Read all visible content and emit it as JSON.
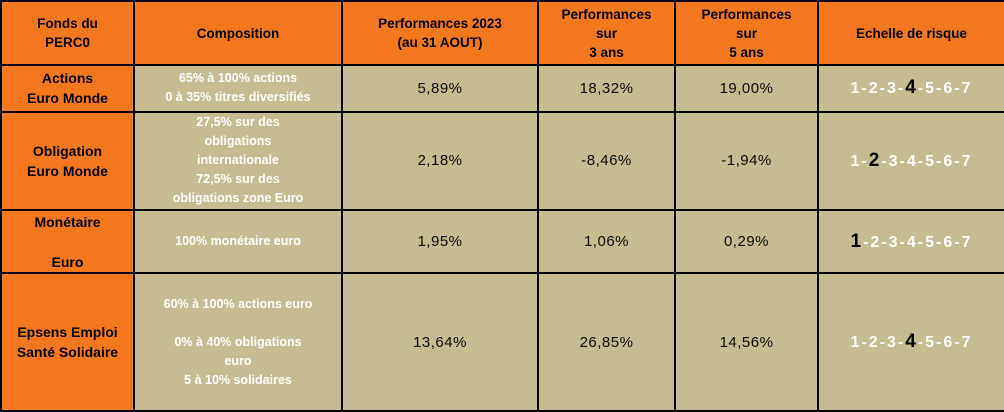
{
  "colors": {
    "header_bg": "#F4791E",
    "cell_bg": "#C5BC92",
    "border": "#000000",
    "composition_text": "#FFFFFF",
    "risk_text": "#FFFFFF",
    "risk_highlight": "#000000"
  },
  "chart_data": {
    "type": "table",
    "title": "Fonds du PERC0 — performances et échelle de risque",
    "headers": [
      [
        "Fonds du",
        "PERC0"
      ],
      [
        "Composition"
      ],
      [
        "Performances 2023",
        "(au 31 AOUT)"
      ],
      [
        "Performances",
        "sur",
        "3 ans"
      ],
      [
        "Performances",
        "sur",
        "5 ans"
      ],
      [
        "Echelle de risque"
      ]
    ],
    "rows": [
      {
        "fund": [
          "Actions",
          "Euro Monde"
        ],
        "composition": [
          "65% à 100% actions",
          "0 à 35% titres diversifiés"
        ],
        "perf_2023": "5,89%",
        "perf_3ans": "18,32%",
        "perf_5ans": "19,00%",
        "risk_scale": [
          1,
          2,
          3,
          4,
          5,
          6,
          7
        ],
        "risk_level": 4
      },
      {
        "fund": [
          "Obligation",
          "Euro Monde"
        ],
        "composition": [
          "27,5% sur des",
          "obligations",
          "internationale",
          "72,5% sur des",
          "obligations zone Euro"
        ],
        "perf_2023": "2,18%",
        "perf_3ans": "-8,46%",
        "perf_5ans": "-1,94%",
        "risk_scale": [
          1,
          2,
          3,
          4,
          5,
          6,
          7
        ],
        "risk_level": 2
      },
      {
        "fund": [
          "Monétaire",
          "",
          "Euro"
        ],
        "composition": [
          "100% monétaire euro"
        ],
        "perf_2023": "1,95%",
        "perf_3ans": "1,06%",
        "perf_5ans": "0,29%",
        "risk_scale": [
          1,
          2,
          3,
          4,
          5,
          6,
          7
        ],
        "risk_level": 1
      },
      {
        "fund": [
          "Epsens Emploi",
          "Santé Solidaire"
        ],
        "composition": [
          "60% à 100% actions euro",
          "",
          "0% à 40% obligations",
          "euro",
          "5 à 10% solidaires"
        ],
        "perf_2023": "13,64%",
        "perf_3ans": "26,85%",
        "perf_5ans": "14,56%",
        "risk_scale": [
          1,
          2,
          3,
          4,
          5,
          6,
          7
        ],
        "risk_level": 4
      }
    ]
  }
}
